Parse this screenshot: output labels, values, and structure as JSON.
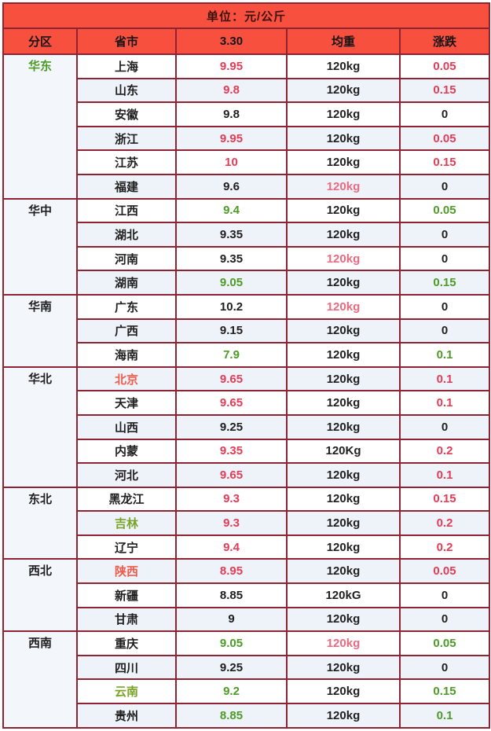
{
  "palette": {
    "header_bg": "#f8503f",
    "border": "#8e2333",
    "row_alt_bg": "#eef3fa",
    "region_col_bg": "#f3f7fc",
    "date_yellow": "#ffe400",
    "red": "#e23c56",
    "green": "#4d9b27",
    "tomato_red": "#f15b4a",
    "light_red": "#ec6a80",
    "olive_green": "#7ba32a",
    "text": "#1f1f1f"
  },
  "chart_data": {
    "type": "table",
    "unit_label": "单位：元/公斤",
    "columns": [
      "分区",
      "省市",
      "3.30",
      "均重",
      "涨跌"
    ],
    "column_colors": [
      "default",
      "default",
      "yellow",
      "default",
      "default"
    ],
    "groups": [
      {
        "region": "华东",
        "region_color": "green",
        "rows": [
          {
            "province": "上海",
            "province_color": "default",
            "price": "9.95",
            "price_color": "red",
            "weight": "120kg",
            "weight_color": "default",
            "change": "0.05",
            "change_color": "red"
          },
          {
            "province": "山东",
            "province_color": "default",
            "price": "9.8",
            "price_color": "red",
            "weight": "120kg",
            "weight_color": "default",
            "change": "0.15",
            "change_color": "red"
          },
          {
            "province": "安徽",
            "province_color": "default",
            "price": "9.8",
            "price_color": "default",
            "weight": "120kg",
            "weight_color": "default",
            "change": "0",
            "change_color": "default"
          },
          {
            "province": "浙江",
            "province_color": "default",
            "price": "9.95",
            "price_color": "red",
            "weight": "120kg",
            "weight_color": "default",
            "change": "0.05",
            "change_color": "red"
          },
          {
            "province": "江苏",
            "province_color": "default",
            "price": "10",
            "price_color": "red",
            "weight": "120kg",
            "weight_color": "default",
            "change": "0.15",
            "change_color": "red"
          },
          {
            "province": "福建",
            "province_color": "default",
            "price": "9.6",
            "price_color": "default",
            "weight": "120kg",
            "weight_color": "lightred",
            "change": "0",
            "change_color": "default"
          }
        ]
      },
      {
        "region": "华中",
        "region_color": "default",
        "rows": [
          {
            "province": "江西",
            "province_color": "default",
            "price": "9.4",
            "price_color": "green",
            "weight": "120kg",
            "weight_color": "default",
            "change": "0.05",
            "change_color": "green"
          },
          {
            "province": "湖北",
            "province_color": "default",
            "price": "9.35",
            "price_color": "default",
            "weight": "120kg",
            "weight_color": "default",
            "change": "0",
            "change_color": "default"
          },
          {
            "province": "河南",
            "province_color": "default",
            "price": "9.35",
            "price_color": "default",
            "weight": "120kg",
            "weight_color": "lightred",
            "change": "0",
            "change_color": "default"
          },
          {
            "province": "湖南",
            "province_color": "default",
            "price": "9.05",
            "price_color": "green",
            "weight": "120kg",
            "weight_color": "default",
            "change": "0.15",
            "change_color": "green"
          }
        ]
      },
      {
        "region": "华南",
        "region_color": "default",
        "rows": [
          {
            "province": "广东",
            "province_color": "default",
            "price": "10.2",
            "price_color": "default",
            "weight": "120kg",
            "weight_color": "lightred",
            "change": "0",
            "change_color": "default"
          },
          {
            "province": "广西",
            "province_color": "default",
            "price": "9.15",
            "price_color": "default",
            "weight": "120kg",
            "weight_color": "default",
            "change": "0",
            "change_color": "default"
          },
          {
            "province": "海南",
            "province_color": "default",
            "price": "7.9",
            "price_color": "green",
            "weight": "120kg",
            "weight_color": "default",
            "change": "0.1",
            "change_color": "green"
          }
        ]
      },
      {
        "region": "华北",
        "region_color": "default",
        "rows": [
          {
            "province": "北京",
            "province_color": "tomato",
            "price": "9.65",
            "price_color": "red",
            "weight": "120kg",
            "weight_color": "default",
            "change": "0.1",
            "change_color": "red"
          },
          {
            "province": "天津",
            "province_color": "default",
            "price": "9.65",
            "price_color": "red",
            "weight": "120kg",
            "weight_color": "default",
            "change": "0.1",
            "change_color": "red"
          },
          {
            "province": "山西",
            "province_color": "default",
            "price": "9.25",
            "price_color": "default",
            "weight": "120kg",
            "weight_color": "default",
            "change": "0",
            "change_color": "default"
          },
          {
            "province": "内蒙",
            "province_color": "default",
            "price": "9.35",
            "price_color": "red",
            "weight": "120Kg",
            "weight_color": "default",
            "change": "0.2",
            "change_color": "red"
          },
          {
            "province": "河北",
            "province_color": "default",
            "price": "9.65",
            "price_color": "red",
            "weight": "120kg",
            "weight_color": "default",
            "change": "0.1",
            "change_color": "red"
          }
        ]
      },
      {
        "region": "东北",
        "region_color": "default",
        "rows": [
          {
            "province": "黑龙江",
            "province_color": "default",
            "price": "9.3",
            "price_color": "red",
            "weight": "120kg",
            "weight_color": "default",
            "change": "0.15",
            "change_color": "red"
          },
          {
            "province": "吉林",
            "province_color": "olive",
            "price": "9.3",
            "price_color": "red",
            "weight": "120kg",
            "weight_color": "default",
            "change": "0.2",
            "change_color": "red"
          },
          {
            "province": "辽宁",
            "province_color": "default",
            "price": "9.4",
            "price_color": "red",
            "weight": "120kg",
            "weight_color": "default",
            "change": "0.2",
            "change_color": "red"
          }
        ]
      },
      {
        "region": "西北",
        "region_color": "default",
        "rows": [
          {
            "province": "陕西",
            "province_color": "tomato",
            "price": "8.95",
            "price_color": "red",
            "weight": "120kg",
            "weight_color": "default",
            "change": "0.05",
            "change_color": "red"
          },
          {
            "province": "新疆",
            "province_color": "default",
            "price": "8.85",
            "price_color": "default",
            "weight": "120kG",
            "weight_color": "default",
            "change": "0",
            "change_color": "default"
          },
          {
            "province": "甘肃",
            "province_color": "default",
            "price": "9",
            "price_color": "default",
            "weight": "120kg",
            "weight_color": "default",
            "change": "0",
            "change_color": "default"
          }
        ]
      },
      {
        "region": "西南",
        "region_color": "default",
        "rows": [
          {
            "province": "重庆",
            "province_color": "default",
            "price": "9.05",
            "price_color": "green",
            "weight": "120kg",
            "weight_color": "lightred",
            "change": "0.05",
            "change_color": "green"
          },
          {
            "province": "四川",
            "province_color": "default",
            "price": "9.25",
            "price_color": "default",
            "weight": "120kg",
            "weight_color": "default",
            "change": "0",
            "change_color": "default"
          },
          {
            "province": "云南",
            "province_color": "olive",
            "price": "9.2",
            "price_color": "green",
            "weight": "120kg",
            "weight_color": "default",
            "change": "0.15",
            "change_color": "green"
          },
          {
            "province": "贵州",
            "province_color": "default",
            "price": "8.85",
            "price_color": "green",
            "weight": "120kg",
            "weight_color": "default",
            "change": "0.1",
            "change_color": "green"
          }
        ]
      }
    ]
  }
}
